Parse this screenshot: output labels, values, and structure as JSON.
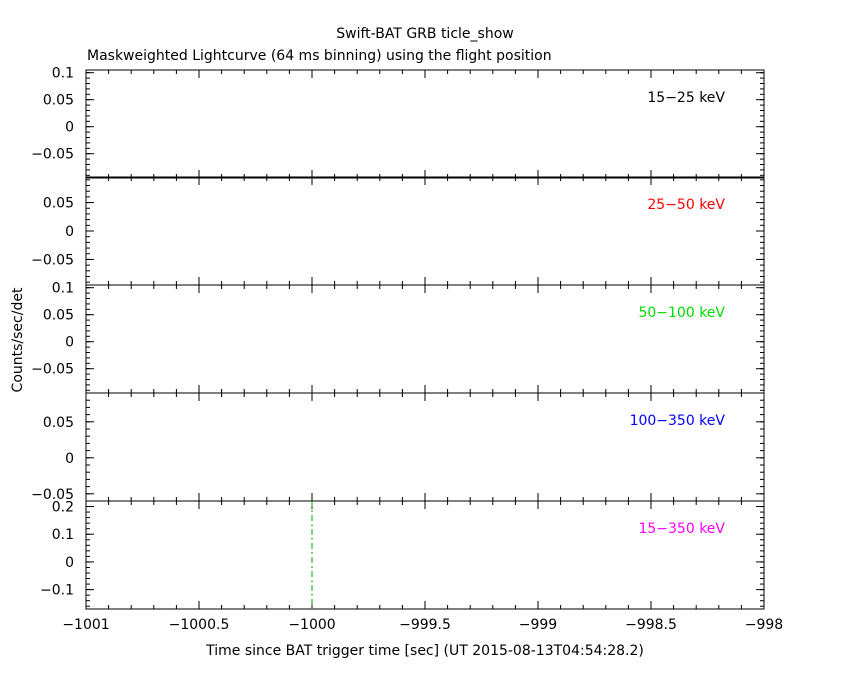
{
  "chart_data": {
    "type": "line",
    "title": "Swift-BAT GRB ticle_show",
    "subtitle": "Maskweighted Lightcurve (64 ms binning) using the flight position",
    "xlabel": "Time since BAT trigger time [sec] (UT 2015-08-13T04:54:28.2)",
    "ylabel": "Counts/sec/det",
    "xlim": [
      -1001,
      -998
    ],
    "x_ticks": [
      -1001,
      -1000.5,
      -1000,
      -999.5,
      -999,
      -998.5,
      -998
    ],
    "x_tick_labels": [
      "−1001",
      "−1000.5",
      "−1000",
      "−999.5",
      "−999",
      "−998.5",
      "−998"
    ],
    "trigger_marker_x": -1000,
    "grid": false,
    "panels": [
      {
        "label": "15−25 keV",
        "color": "#000000",
        "ylim": [
          -0.095,
          0.105
        ],
        "y_ticks": [
          -0.05,
          0,
          0.05,
          0.1
        ],
        "y_tick_labels": [
          "−0.05",
          "0",
          "0.05",
          "0.1"
        ],
        "show_trigger": false
      },
      {
        "label": "25−50 keV",
        "color": "#ff0000",
        "ylim": [
          -0.095,
          0.095
        ],
        "y_ticks": [
          -0.05,
          0,
          0.05
        ],
        "y_tick_labels": [
          "−0.05",
          "0",
          "0.05"
        ],
        "show_trigger": false
      },
      {
        "label": "50−100 keV",
        "color": "#00dd00",
        "ylim": [
          -0.095,
          0.105
        ],
        "y_ticks": [
          -0.05,
          0,
          0.05,
          0.1
        ],
        "y_tick_labels": [
          "−0.05",
          "0",
          "0.05",
          "0.1"
        ],
        "show_trigger": false
      },
      {
        "label": "100−350 keV",
        "color": "#0000ff",
        "ylim": [
          -0.06,
          0.09
        ],
        "y_ticks": [
          -0.05,
          0,
          0.05
        ],
        "y_tick_labels": [
          "−0.05",
          "0",
          "0.05"
        ],
        "show_trigger": false
      },
      {
        "label": "15−350 keV",
        "color": "#ff00ff",
        "ylim": [
          -0.17,
          0.22
        ],
        "y_ticks": [
          -0.1,
          0,
          0.1,
          0.2
        ],
        "y_tick_labels": [
          "−0.1",
          "0",
          "0.1",
          "0.2"
        ],
        "show_trigger": true
      }
    ],
    "trigger_color": "#00aa00"
  }
}
